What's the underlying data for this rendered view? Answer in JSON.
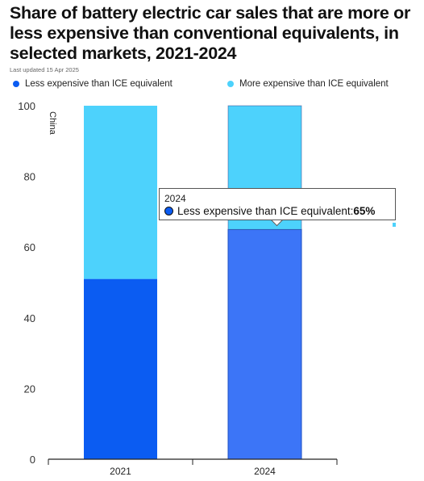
{
  "header": {
    "title": "Share of battery electric car sales that are more or less expensive than conventional equivalents, in selected markets, 2021-2024",
    "updated": "Last updated 15 Apr 2025"
  },
  "colors": {
    "less": "#0b5cf2",
    "less_hover": "#3c75f7",
    "more": "#4dd2fc",
    "axis": "#222222",
    "tick_text": "#333333"
  },
  "chart_data": {
    "type": "bar",
    "stacked": true,
    "panel_label": "China",
    "categories": [
      "2021",
      "2024"
    ],
    "series": [
      {
        "name": "Less expensive than ICE equivalent",
        "values": [
          51,
          65
        ],
        "color": "#0b5cf2"
      },
      {
        "name": "More expensive than ICE equivalent",
        "values": [
          49,
          35
        ],
        "color": "#4dd2fc"
      }
    ],
    "ylim": [
      0,
      100
    ],
    "yticks": [
      0,
      20,
      40,
      60,
      80,
      100
    ],
    "grid": false,
    "legend_position": "top"
  },
  "tooltip": {
    "year": "2024",
    "label": "Less expensive than ICE equivalent: ",
    "value": "65%"
  }
}
